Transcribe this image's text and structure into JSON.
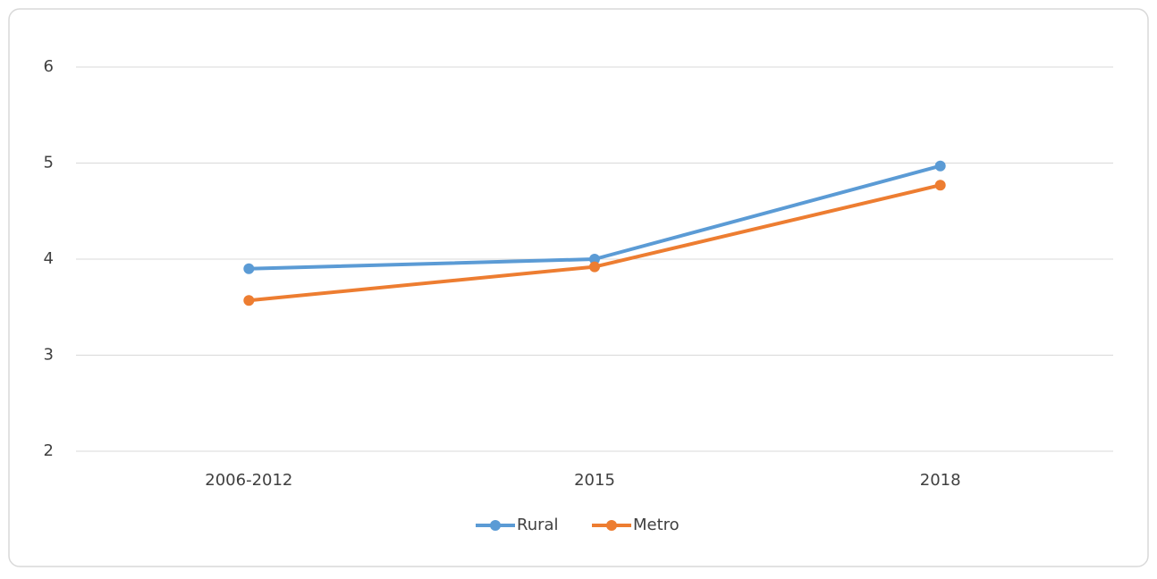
{
  "chart_data": {
    "type": "line",
    "categories": [
      "2006-2012",
      "2015",
      "2018"
    ],
    "series": [
      {
        "name": "Rural",
        "color": "#5b9bd5",
        "values": [
          3.9,
          4.0,
          4.97
        ]
      },
      {
        "name": "Metro",
        "color": "#ed7d31",
        "values": [
          3.57,
          3.92,
          4.77
        ]
      }
    ],
    "ylim": [
      2,
      6
    ],
    "yticks": [
      2,
      3,
      4,
      5,
      6
    ],
    "grid": true,
    "legend": "bottom"
  }
}
